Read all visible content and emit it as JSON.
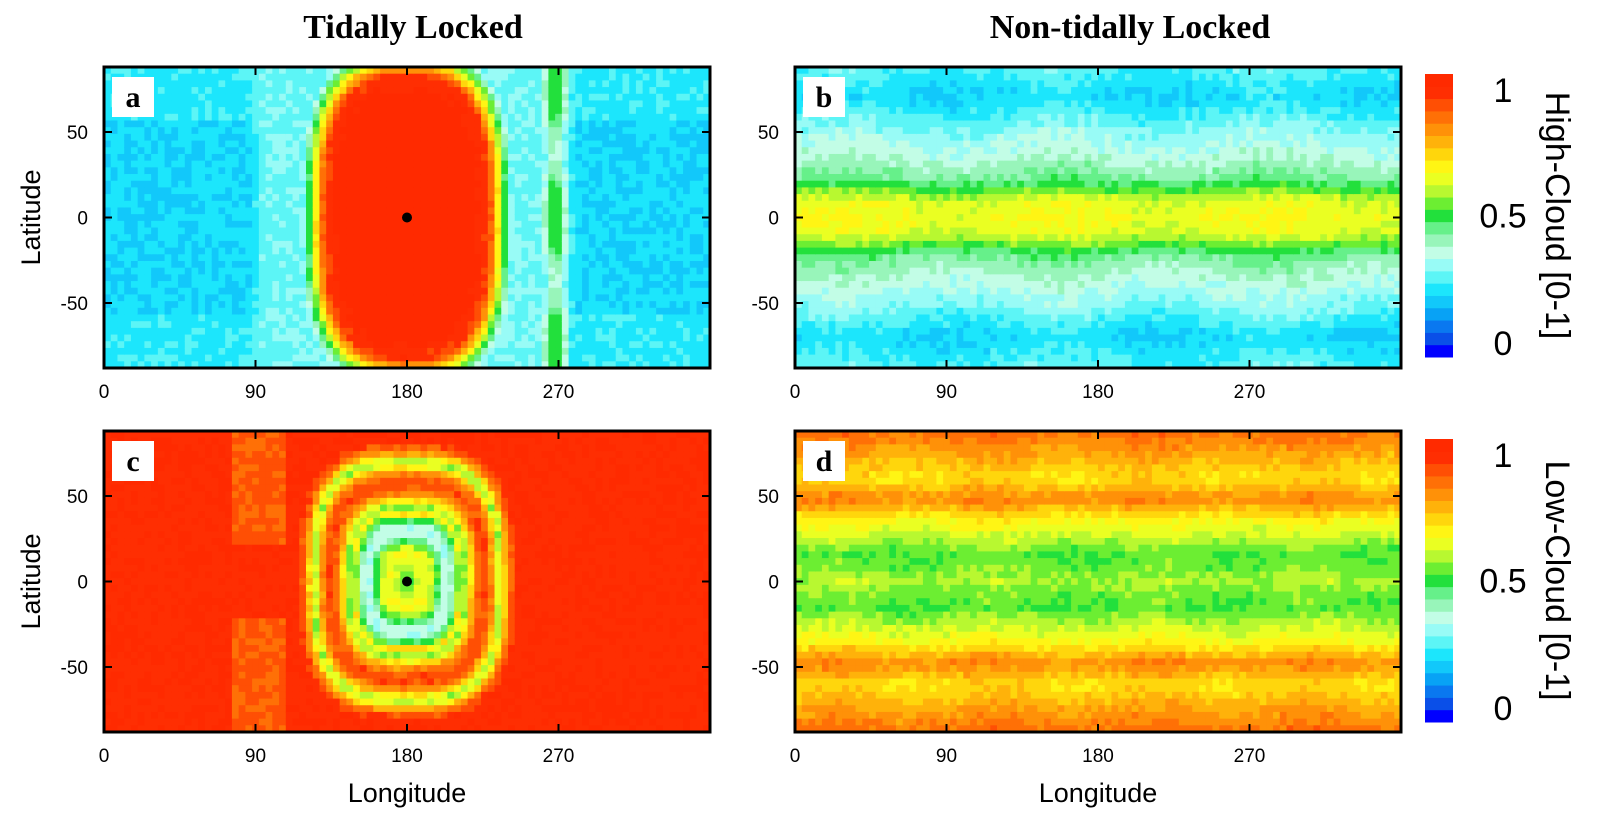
{
  "figure": {
    "column_titles": [
      "Tidally Locked",
      "Non-tidally Locked"
    ]
  },
  "chart_data": [
    {
      "type": "heatmap",
      "panel": "a",
      "title": "Tidally Locked",
      "xlabel": "",
      "ylabel": "Latitude",
      "xlim": [
        0,
        360
      ],
      "ylim": [
        -88,
        88
      ],
      "xticks": [
        0,
        90,
        180,
        270
      ],
      "yticks": [
        -50,
        0,
        50
      ],
      "colorbar": "High-Cloud [0-1]",
      "substellar_point": [
        180,
        0
      ],
      "description_values": {
        "substellar_region": 1.0,
        "dayside_ring": 0.55,
        "nightside_min": 0.08
      }
    },
    {
      "type": "heatmap",
      "panel": "b",
      "title": "Non-tidally Locked",
      "xlabel": "",
      "ylabel": "",
      "xlim": [
        0,
        360
      ],
      "ylim": [
        -88,
        88
      ],
      "xticks": [
        0,
        90,
        180,
        270
      ],
      "yticks": [
        -50,
        0,
        50
      ],
      "colorbar": "High-Cloud [0-1]",
      "zonal_profile": {
        "lat": [
          -88,
          -70,
          -50,
          -35,
          -22,
          -10,
          0,
          10,
          22,
          35,
          50,
          70,
          88
        ],
        "value": [
          0.28,
          0.22,
          0.32,
          0.38,
          0.45,
          0.62,
          0.65,
          0.62,
          0.45,
          0.38,
          0.32,
          0.22,
          0.28
        ]
      }
    },
    {
      "type": "heatmap",
      "panel": "c",
      "title": "",
      "xlabel": "Longitude",
      "ylabel": "Latitude",
      "xlim": [
        0,
        360
      ],
      "ylim": [
        -88,
        88
      ],
      "xticks": [
        0,
        90,
        180,
        270
      ],
      "yticks": [
        -50,
        0,
        50
      ],
      "colorbar": "Low-Cloud [0-1]",
      "substellar_point": [
        180,
        0
      ],
      "description_values": {
        "background": 0.95,
        "ring": 0.65,
        "center": 0.5
      }
    },
    {
      "type": "heatmap",
      "panel": "d",
      "title": "",
      "xlabel": "Longitude",
      "ylabel": "",
      "xlim": [
        0,
        360
      ],
      "ylim": [
        -88,
        88
      ],
      "xticks": [
        0,
        90,
        180,
        270
      ],
      "yticks": [
        -50,
        0,
        50
      ],
      "colorbar": "Low-Cloud [0-1]",
      "zonal_profile": {
        "lat": [
          -88,
          -75,
          -60,
          -48,
          -35,
          -15,
          0,
          15,
          35,
          48,
          60,
          75,
          88
        ],
        "value": [
          0.85,
          0.78,
          0.7,
          0.82,
          0.66,
          0.52,
          0.58,
          0.52,
          0.66,
          0.82,
          0.7,
          0.78,
          0.85
        ]
      }
    }
  ],
  "colorbars": [
    {
      "label": "High-Cloud [0-1]",
      "ticks": [
        "1",
        "0.5",
        "0"
      ],
      "range": [
        0,
        1
      ]
    },
    {
      "label": "Low-Cloud [0-1]",
      "ticks": [
        "1",
        "0.5",
        "0"
      ],
      "range": [
        0,
        1
      ]
    }
  ],
  "colormap": [
    "#0000ff",
    "#0a4fe8",
    "#0a78f0",
    "#08a2f5",
    "#12c8fa",
    "#1ce6fc",
    "#5cf5f6",
    "#98fbf6",
    "#c2fde6",
    "#98f5ba",
    "#66f08a",
    "#22e03c",
    "#6cee32",
    "#b8f830",
    "#eaff22",
    "#fff514",
    "#ffd60c",
    "#ffb20a",
    "#ff9108",
    "#ff7006",
    "#ff4f04",
    "#ff2e02",
    "#ff2a00"
  ]
}
